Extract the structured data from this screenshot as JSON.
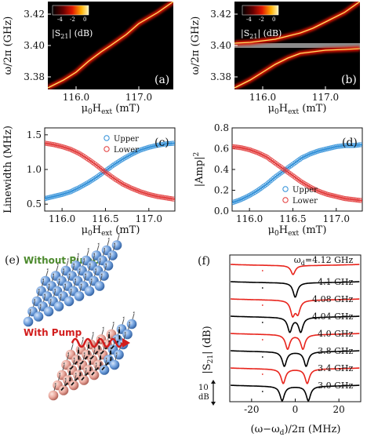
{
  "chart_data": [
    {
      "panel": "(a)",
      "type": "heatmap",
      "xlabel": "μ0Hext (mT)",
      "ylabel": "ω/2π (GHz)",
      "xticks": [
        "116.0",
        "117.0"
      ],
      "yticks": [
        "3.38",
        "3.40",
        "3.42"
      ],
      "xlim": [
        115.55,
        117.55
      ],
      "ylim": [
        3.372,
        3.428
      ],
      "colorbar": {
        "label": "|S21| (dB)",
        "ticks": [
          "-4",
          "-2",
          "0"
        ]
      },
      "branches": [
        {
          "points": [
            [
              115.55,
              3.373
            ],
            [
              115.8,
              3.378
            ],
            [
              116.0,
              3.383
            ],
            [
              116.2,
              3.39
            ],
            [
              116.4,
              3.396
            ],
            [
              116.55,
              3.4
            ],
            [
              116.8,
              3.407
            ],
            [
              117.0,
              3.414
            ],
            [
              117.3,
              3.421
            ],
            [
              117.55,
              3.428
            ]
          ]
        }
      ]
    },
    {
      "panel": "(b)",
      "type": "heatmap",
      "xlabel": "μ0Hext (mT)",
      "ylabel": "ω/2π (GHz)",
      "xticks": [
        "116.0",
        "117.0"
      ],
      "yticks": [
        "3.38",
        "3.40",
        "3.42"
      ],
      "xlim": [
        115.55,
        117.55
      ],
      "ylim": [
        3.372,
        3.428
      ],
      "colorbar": {
        "label": "|S21| (dB)",
        "ticks": [
          "-4",
          "-2",
          "0"
        ]
      },
      "band_frequency": 3.4,
      "branches": [
        {
          "points": [
            [
              115.55,
              3.373
            ],
            [
              115.8,
              3.378
            ],
            [
              116.0,
              3.383
            ],
            [
              116.2,
              3.388
            ],
            [
              116.4,
              3.392
            ],
            [
              116.6,
              3.395
            ],
            [
              116.8,
              3.396
            ],
            [
              117.0,
              3.397
            ],
            [
              117.3,
              3.3975
            ],
            [
              117.55,
              3.398
            ]
          ]
        },
        {
          "points": [
            [
              115.55,
              3.4015
            ],
            [
              115.8,
              3.402
            ],
            [
              116.0,
              3.403
            ],
            [
              116.2,
              3.404
            ],
            [
              116.4,
              3.406
            ],
            [
              116.6,
              3.408
            ],
            [
              116.8,
              3.411
            ],
            [
              117.0,
              3.415
            ],
            [
              117.3,
              3.421
            ],
            [
              117.55,
              3.428
            ]
          ]
        }
      ]
    },
    {
      "panel": "(c)",
      "type": "scatter",
      "xlabel": "μ0Hext (mT)",
      "ylabel": "Linewidth (MHz)",
      "xlim": [
        115.8,
        117.3
      ],
      "ylim": [
        0.4,
        1.6
      ],
      "xticks": [
        "116.0",
        "116.5",
        "117.0"
      ],
      "yticks": [
        "0.5",
        "1.0",
        "1.5"
      ],
      "legend_position": "top-right",
      "series": [
        {
          "name": "Upper",
          "color": "#2f8fd8",
          "x": [
            115.8,
            115.9,
            116.0,
            116.1,
            116.2,
            116.3,
            116.4,
            116.5,
            116.6,
            116.7,
            116.8,
            116.9,
            117.0,
            117.1,
            117.2,
            117.3
          ],
          "y": [
            0.58,
            0.61,
            0.64,
            0.68,
            0.74,
            0.81,
            0.89,
            0.98,
            1.07,
            1.15,
            1.22,
            1.28,
            1.32,
            1.35,
            1.37,
            1.38
          ]
        },
        {
          "name": "Lower",
          "color": "#e23a3a",
          "x": [
            115.8,
            115.9,
            116.0,
            116.1,
            116.2,
            116.3,
            116.4,
            116.5,
            116.6,
            116.7,
            116.8,
            116.9,
            117.0,
            117.1,
            117.2,
            117.3
          ],
          "y": [
            1.38,
            1.36,
            1.33,
            1.29,
            1.23,
            1.15,
            1.06,
            0.96,
            0.87,
            0.79,
            0.73,
            0.68,
            0.64,
            0.61,
            0.59,
            0.57
          ]
        }
      ]
    },
    {
      "panel": "(d)",
      "type": "scatter",
      "xlabel": "μ0Hext (mT)",
      "ylabel": "|Amp|2",
      "xlim": [
        115.8,
        117.3
      ],
      "ylim": [
        0.0,
        0.8
      ],
      "xticks": [
        "116.0",
        "116.5",
        "117.0"
      ],
      "yticks": [
        "0.0",
        "0.2",
        "0.4",
        "0.6",
        "0.8"
      ],
      "legend_position": "bottom-right",
      "series": [
        {
          "name": "Upper",
          "color": "#2f8fd8",
          "x": [
            115.8,
            115.9,
            116.0,
            116.1,
            116.2,
            116.3,
            116.4,
            116.5,
            116.6,
            116.7,
            116.8,
            116.9,
            117.0,
            117.1,
            117.2,
            117.3
          ],
          "y": [
            0.08,
            0.11,
            0.15,
            0.2,
            0.26,
            0.33,
            0.39,
            0.45,
            0.51,
            0.55,
            0.58,
            0.6,
            0.62,
            0.63,
            0.63,
            0.64
          ]
        },
        {
          "name": "Lower",
          "color": "#e23a3a",
          "x": [
            115.8,
            115.9,
            116.0,
            116.1,
            116.2,
            116.3,
            116.4,
            116.5,
            116.6,
            116.7,
            116.8,
            116.9,
            117.0,
            117.1,
            117.2,
            117.3
          ],
          "y": [
            0.62,
            0.61,
            0.59,
            0.56,
            0.52,
            0.46,
            0.4,
            0.34,
            0.28,
            0.23,
            0.19,
            0.16,
            0.14,
            0.12,
            0.11,
            0.1
          ]
        }
      ]
    },
    {
      "panel": "(f)",
      "type": "line",
      "xlabel": "(ω−ωd)/2π (MHz)",
      "ylabel": "|S21| (dB)",
      "xlim": [
        -30,
        30
      ],
      "xticks": [
        "-20",
        "0",
        "20"
      ],
      "scale_bar": {
        "value": "10",
        "unit": "dB"
      },
      "series": [
        {
          "name": "ωd=4.12 GHz",
          "color": "#e8241c",
          "dips": [
            {
              "center": -1.0,
              "depth": 5.0,
              "width": 1.2
            }
          ]
        },
        {
          "name": "4.1 GHz",
          "color": "#000000",
          "dips": [
            {
              "center": 0.0,
              "depth": 8.0,
              "width": 1.2
            }
          ]
        },
        {
          "name": "4.08 GHz",
          "color": "#e8241c",
          "dips": [
            {
              "center": -1.2,
              "depth": 8.0,
              "width": 1.2
            },
            {
              "center": 1.2,
              "depth": 7.0,
              "width": 1.2
            }
          ]
        },
        {
          "name": "4.04 GHz",
          "color": "#000000",
          "dips": [
            {
              "center": -2.5,
              "depth": 8.0,
              "width": 1.2
            },
            {
              "center": 2.5,
              "depth": 8.0,
              "width": 1.2
            }
          ]
        },
        {
          "name": "4.0 GHz",
          "color": "#e8241c",
          "dips": [
            {
              "center": -3.5,
              "depth": 8.0,
              "width": 1.2
            },
            {
              "center": 3.5,
              "depth": 8.0,
              "width": 1.2
            }
          ]
        },
        {
          "name": "3.8 GHz",
          "color": "#000000",
          "dips": [
            {
              "center": -5.0,
              "depth": 8.0,
              "width": 1.2
            },
            {
              "center": 5.0,
              "depth": 8.0,
              "width": 1.2
            }
          ]
        },
        {
          "name": "3.4 GHz",
          "color": "#e8241c",
          "dips": [
            {
              "center": -5.5,
              "depth": 8.0,
              "width": 1.2
            },
            {
              "center": 5.5,
              "depth": 8.0,
              "width": 1.2
            }
          ]
        },
        {
          "name": "3.0 GHz",
          "color": "#000000",
          "dips": [
            {
              "center": -6.0,
              "depth": 8.0,
              "width": 1.2
            },
            {
              "center": 6.0,
              "depth": 8.0,
              "width": 1.2
            }
          ]
        }
      ]
    }
  ],
  "labels": {
    "a": "(a)",
    "b": "(b)",
    "c": "(c)",
    "d": "(d)",
    "e": "(e)",
    "f": "(f)",
    "without_pump": "Without Pump",
    "with_pump": "With Pump",
    "x_mu": "μ",
    "x_sub0": "0",
    "x_H": "H",
    "x_sub_ext": "ext",
    "x_unit": " (mT)",
    "y_omega": "ω/2π (GHz)",
    "cb_pre": "|S",
    "cb_sub": "21",
    "cb_post": "| (dB)",
    "lw": "Linewidth (MHz)",
    "amp_pre": "|Amp|",
    "amp_sup": "2",
    "f_y_pre": "|S",
    "f_y_sub": "21",
    "f_y_post": "| (dB)",
    "f_x": "(ω−ω",
    "f_x_sub": "d",
    "f_x_post": ")/2π (MHz)",
    "f_first_pre": "ω",
    "f_first_sub": "d",
    "f_first_post": "=4.12 GHz"
  },
  "colors": {
    "upper": "#2f8fd8",
    "lower": "#e23a3a",
    "pump": "#d21d1d",
    "without_pump": "#4d8a2e",
    "sphere_blue": "#6f9fdc",
    "sphere_pink": "#e8a59a"
  }
}
